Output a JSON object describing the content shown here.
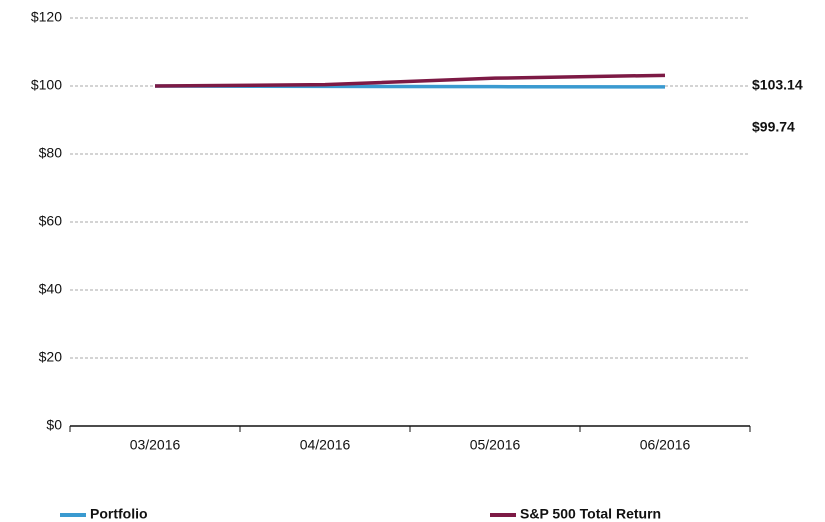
{
  "chart_data": {
    "type": "line",
    "categories": [
      "03/2016",
      "04/2016",
      "05/2016",
      "06/2016"
    ],
    "series": [
      {
        "name": "Portfolio",
        "color": "#3a9ad0",
        "values": [
          100,
          99.9,
          99.8,
          99.74
        ],
        "value_labels": [
          null,
          null,
          null,
          "$99.74"
        ]
      },
      {
        "name": "S&P 500 Total Return",
        "color": "#7d1a45",
        "values": [
          100,
          100.4,
          102.3,
          103.14
        ],
        "value_labels": [
          null,
          null,
          null,
          "$103.14"
        ]
      }
    ],
    "ylim": [
      0,
      120
    ],
    "yticks": [
      {
        "value": 0,
        "label": "$0"
      },
      {
        "value": 20,
        "label": "$20"
      },
      {
        "value": 40,
        "label": "$40"
      },
      {
        "value": 60,
        "label": "$60"
      },
      {
        "value": 80,
        "label": "$80"
      },
      {
        "value": 100,
        "label": "$100"
      },
      {
        "value": 120,
        "label": "$120"
      }
    ],
    "grid": true
  }
}
